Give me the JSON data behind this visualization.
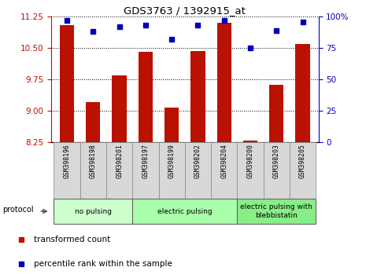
{
  "title": "GDS3763 / 1392915_at",
  "samples": [
    "GSM398196",
    "GSM398198",
    "GSM398201",
    "GSM398197",
    "GSM398199",
    "GSM398202",
    "GSM398204",
    "GSM398200",
    "GSM398203",
    "GSM398205"
  ],
  "bar_values": [
    11.05,
    9.2,
    9.85,
    10.4,
    9.07,
    10.43,
    11.1,
    8.28,
    9.62,
    10.6
  ],
  "dot_values": [
    97,
    88,
    92,
    93,
    82,
    93,
    97,
    75,
    89,
    96
  ],
  "ylim_left": [
    8.25,
    11.25
  ],
  "ylim_right": [
    0,
    100
  ],
  "yticks_left": [
    8.25,
    9.0,
    9.75,
    10.5,
    11.25
  ],
  "yticks_right": [
    0,
    25,
    50,
    75,
    100
  ],
  "ytick_labels_right": [
    "0",
    "25",
    "50",
    "75",
    "100%"
  ],
  "bar_color": "#bb1100",
  "dot_color": "#0000bb",
  "groups": [
    {
      "label": "no pulsing",
      "start": 0,
      "end": 3,
      "color": "#ccffcc"
    },
    {
      "label": "electric pulsing",
      "start": 3,
      "end": 7,
      "color": "#aaffaa"
    },
    {
      "label": "electric pulsing with\nblebbistatin",
      "start": 7,
      "end": 10,
      "color": "#88ee88"
    }
  ],
  "protocol_label": "protocol",
  "legend_bar_label": "transformed count",
  "legend_dot_label": "percentile rank within the sample",
  "sample_bg": "#d8d8d8",
  "plot_bg": "#ffffff"
}
